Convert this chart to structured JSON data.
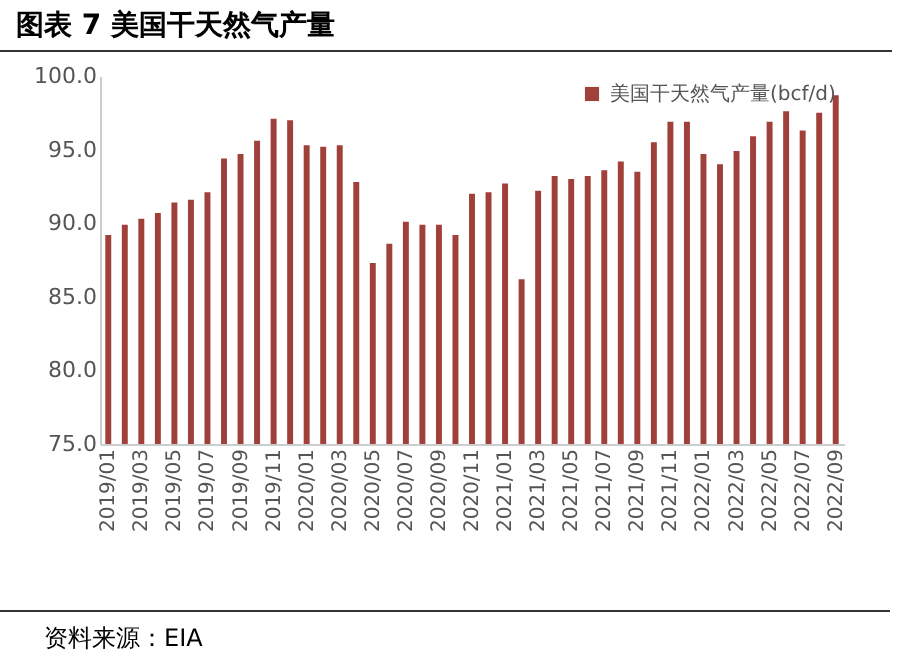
{
  "chart_data": {
    "type": "bar",
    "title": "图表 7  美国干天然气产量",
    "categories": [
      "2019/01",
      null,
      "2019/03",
      null,
      "2019/05",
      null,
      "2019/07",
      null,
      "2019/09",
      null,
      "2019/11",
      null,
      "2020/01",
      null,
      "2020/03",
      null,
      "2020/05",
      null,
      "2020/07",
      null,
      "2020/09",
      null,
      "2020/11",
      null,
      "2021/01",
      null,
      "2021/03",
      null,
      "2021/05",
      null,
      "2021/07",
      null,
      "2021/09",
      null,
      "2021/11",
      null,
      "2022/01",
      null,
      "2022/03",
      null,
      "2022/05",
      null,
      "2022/07",
      null,
      "2022/09"
    ],
    "series": [
      {
        "name": "美国干天然气产量(bcf/d)",
        "color": "#a0403a",
        "values": [
          89.2,
          89.9,
          90.3,
          90.7,
          91.4,
          91.6,
          92.1,
          94.4,
          94.7,
          95.6,
          97.1,
          97.0,
          95.3,
          95.2,
          95.3,
          92.8,
          87.3,
          88.6,
          90.1,
          89.9,
          89.9,
          89.2,
          92.0,
          92.1,
          92.7,
          86.2,
          92.2,
          93.2,
          93.0,
          93.2,
          93.6,
          94.2,
          93.5,
          95.5,
          96.9,
          96.9,
          94.7,
          94.0,
          94.9,
          95.9,
          96.9,
          97.6,
          96.3,
          97.5,
          98.7
        ]
      }
    ],
    "ylim": [
      75,
      100
    ],
    "yticks": [
      {
        "value": 75,
        "label": "75.0"
      },
      {
        "value": 80,
        "label": "80.0"
      },
      {
        "value": 85,
        "label": "85.0"
      },
      {
        "value": 90,
        "label": "90.0"
      },
      {
        "value": 95,
        "label": "95.0"
      },
      {
        "value": 100,
        "label": "100.0"
      }
    ],
    "grid": false,
    "legend": "top right",
    "annotations": [
      "资料来源：EIA"
    ]
  }
}
